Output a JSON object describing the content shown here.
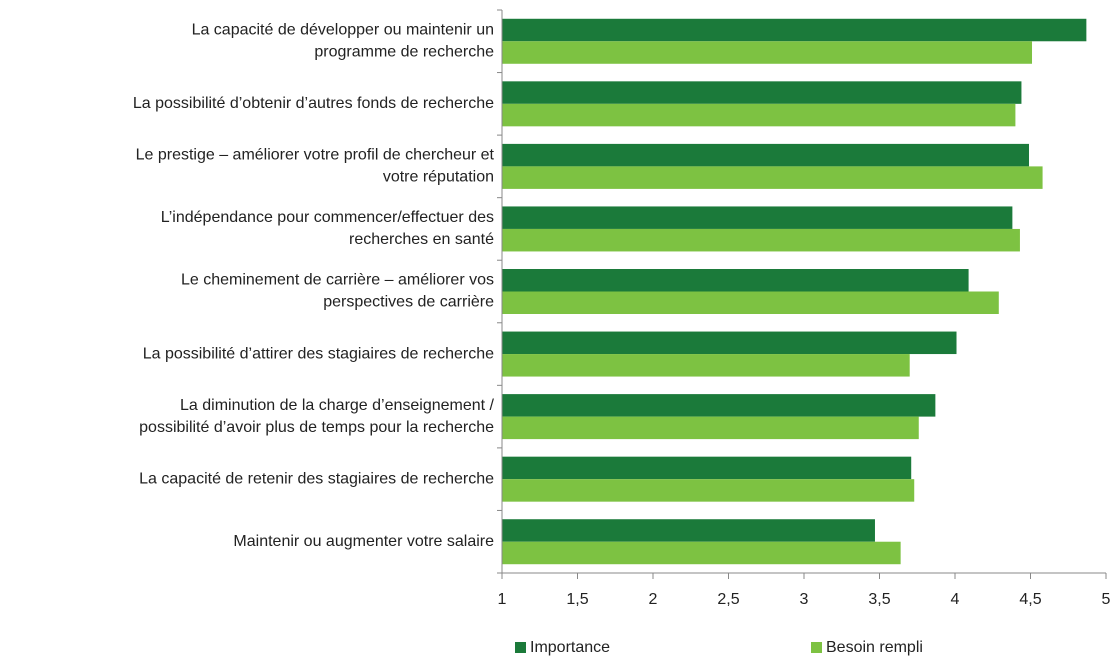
{
  "chart_data": {
    "type": "bar",
    "orientation": "horizontal",
    "categories": [
      [
        "La capacité de développer ou maintenir un",
        "programme de recherche"
      ],
      [
        "La possibilité d’obtenir d’autres fonds de recherche"
      ],
      [
        "Le prestige – améliorer votre profil de chercheur et",
        "votre réputation"
      ],
      [
        "L’indépendance pour commencer/effectuer des",
        "recherches en santé"
      ],
      [
        "Le cheminement de carrière – améliorer vos",
        "perspectives de carrière"
      ],
      [
        "La possibilité d’attirer des stagiaires de recherche"
      ],
      [
        "La diminution de la charge d’enseignement /",
        "possibilité d’avoir plus de temps pour la recherche"
      ],
      [
        "La capacité de retenir des stagiaires de recherche"
      ],
      [
        "Maintenir ou augmenter votre salaire"
      ]
    ],
    "series": [
      {
        "name": "Importance",
        "color": "#1b7a3a",
        "values": [
          4.87,
          4.44,
          4.49,
          4.38,
          4.09,
          4.01,
          3.87,
          3.71,
          3.47
        ]
      },
      {
        "name": "Besoin rempli",
        "color": "#7dc242",
        "values": [
          4.51,
          4.4,
          4.58,
          4.43,
          4.29,
          3.7,
          3.76,
          3.73,
          3.64
        ]
      }
    ],
    "xlim": [
      1,
      5
    ],
    "xticks": [
      1,
      {
        "value": 1.5,
        "label": "1,5"
      },
      2,
      {
        "value": 2.5,
        "label": "2,5"
      },
      3,
      {
        "value": 3.5,
        "label": "3,5"
      },
      4,
      {
        "value": 4.5,
        "label": "4,5"
      },
      5
    ],
    "legend": "bottom"
  }
}
